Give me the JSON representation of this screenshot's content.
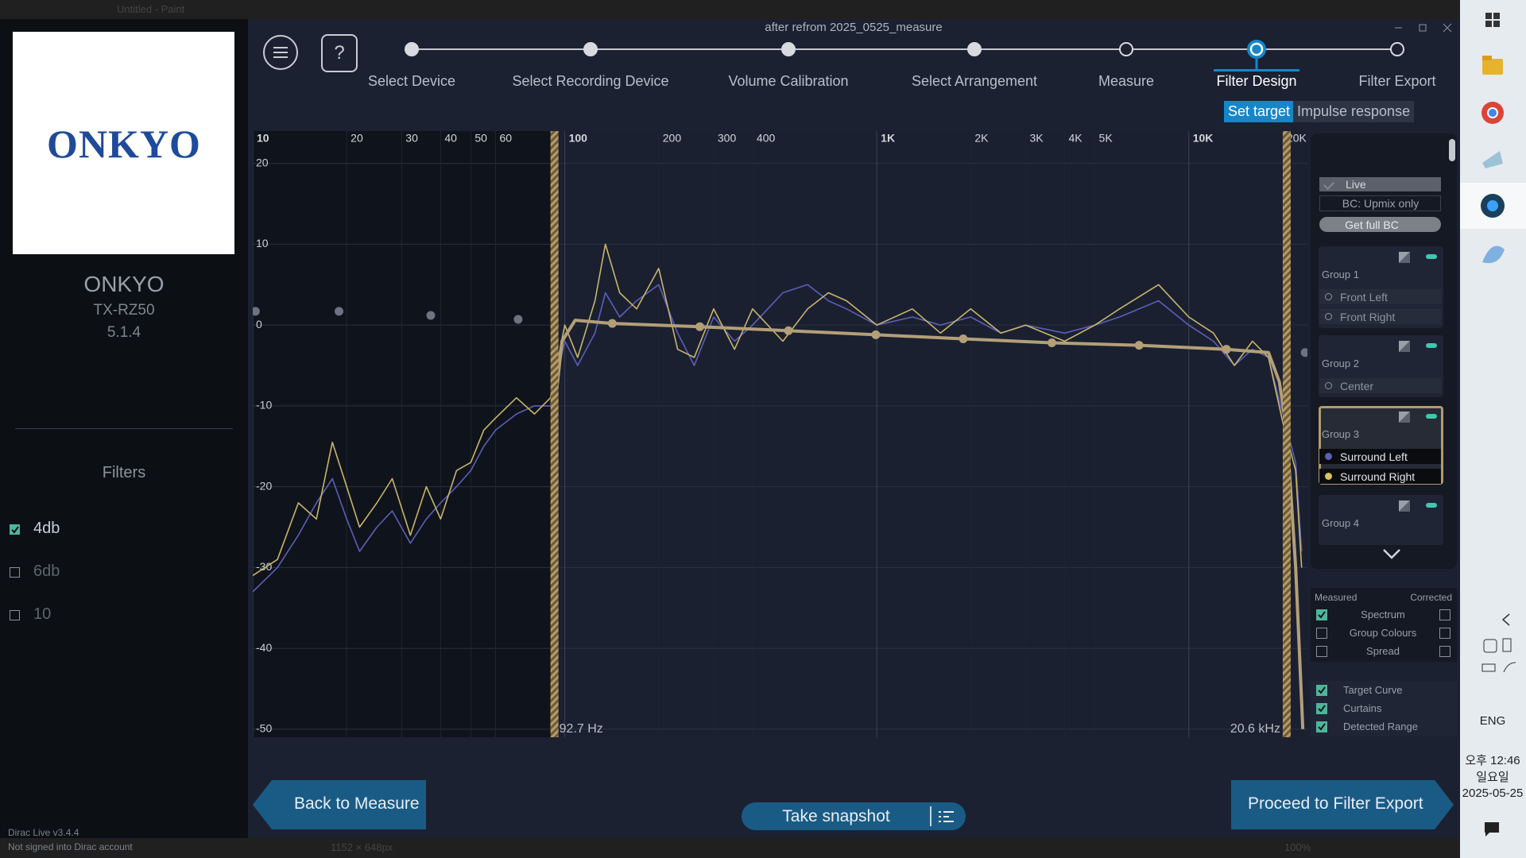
{
  "window": {
    "app_title": "Untitled - Paint",
    "title": "after refrom 2025_0525_measure",
    "status_size": "1152 × 648px",
    "status_zoom": "100%"
  },
  "sidebar": {
    "brand_logo": "ONKYO",
    "device_name": "ONKYO",
    "model": "TX-RZ50",
    "layout": "5.1.4",
    "filters_title": "Filters",
    "filters": [
      {
        "label": "4db",
        "checked": true
      },
      {
        "label": "6db",
        "checked": false
      },
      {
        "label": "10",
        "checked": false
      }
    ],
    "version": "Dirac Live v3.4.4",
    "account": "Not signed into Dirac account"
  },
  "toolbar": {
    "help": "?"
  },
  "steps": [
    {
      "label": "Select Device",
      "state": "done"
    },
    {
      "label": "Select Recording Device",
      "state": "done"
    },
    {
      "label": "Volume Calibration",
      "state": "done"
    },
    {
      "label": "Select Arrangement",
      "state": "done"
    },
    {
      "label": "Measure",
      "state": "todo"
    },
    {
      "label": "Filter Design",
      "state": "current"
    },
    {
      "label": "Filter Export",
      "state": "todo"
    }
  ],
  "tabs": [
    {
      "label": "Set target",
      "active": true
    },
    {
      "label": "Impulse response",
      "active": false
    }
  ],
  "plot": {
    "xlim": [
      10,
      24000
    ],
    "ylim": [
      -51,
      24
    ],
    "log_x": true,
    "xticks": [
      10,
      20,
      30,
      40,
      50,
      60,
      100,
      200,
      300,
      400,
      {
        "value": 1000,
        "label": "1K"
      },
      {
        "value": 2000,
        "label": "2K"
      },
      {
        "value": 3000,
        "label": "3K"
      },
      {
        "value": 4000,
        "label": "4K"
      },
      {
        "value": 5000,
        "label": "5K"
      },
      {
        "value": 10000,
        "label": "10K"
      },
      {
        "value": 20000,
        "label": "20K"
      }
    ],
    "yticks": [
      20,
      10,
      0,
      -10,
      -20,
      -30,
      -40,
      -50
    ],
    "curtains": [
      {
        "value": 92.7,
        "label": "92.7 Hz"
      },
      {
        "value": 20600,
        "label": "20.6 kHz"
      }
    ],
    "series": [
      {
        "name": "Surround Left",
        "color": "#5b5fb8",
        "x": [
          10,
          12,
          14,
          16,
          18,
          20,
          22,
          25,
          28,
          32,
          36,
          40,
          45,
          50,
          55,
          60,
          70,
          80,
          90,
          100,
          110,
          125,
          135,
          150,
          170,
          200,
          230,
          260,
          300,
          350,
          400,
          500,
          600,
          700,
          800,
          1000,
          1300,
          1600,
          2000,
          2500,
          3000,
          4000,
          5000,
          6000,
          8000,
          10000,
          12000,
          14000,
          16000,
          18000,
          20000,
          22000,
          23000
        ],
        "values": [
          -33,
          -30,
          -26,
          -22,
          -19,
          -24,
          -28,
          -25,
          -23,
          -27,
          -24,
          -22,
          -20,
          -18,
          -15,
          -13,
          -11,
          -10,
          -10,
          -2,
          -5,
          -1,
          4,
          1,
          3,
          5,
          -1,
          -5,
          1,
          -2,
          0,
          4,
          5,
          3,
          2,
          0,
          1,
          0,
          1,
          -1,
          0,
          -1,
          0,
          1,
          3,
          0,
          -2,
          -5,
          -3,
          -4,
          -11,
          -17,
          -28
        ]
      },
      {
        "name": "Surround Right",
        "color": "#c9b56a",
        "x": [
          10,
          12,
          14,
          16,
          18,
          20,
          22,
          25,
          28,
          32,
          36,
          40,
          45,
          50,
          55,
          60,
          70,
          80,
          90,
          100,
          110,
          125,
          135,
          150,
          170,
          200,
          230,
          260,
          300,
          350,
          400,
          500,
          600,
          700,
          800,
          1000,
          1300,
          1600,
          2000,
          2500,
          3000,
          4000,
          5000,
          6000,
          8000,
          10000,
          12000,
          14000,
          16000,
          18000,
          20000,
          22000,
          23000
        ],
        "values": [
          -31,
          -29,
          -22,
          -24,
          -14.5,
          -20,
          -25,
          -22,
          -19,
          -26,
          -20,
          -24,
          -18,
          -17,
          -13,
          -11.5,
          -9,
          -11,
          -9,
          0,
          -4,
          3,
          10,
          4,
          2,
          7,
          -3,
          -4,
          2,
          -3,
          2,
          -2,
          2,
          4,
          3,
          0,
          2,
          -1,
          2,
          -1,
          0,
          -2,
          0,
          2,
          5,
          1,
          -1,
          -5,
          -2,
          -4,
          -12,
          -18,
          -30
        ]
      }
    ],
    "target": {
      "color": "#b39f78",
      "x": [
        91,
        93,
        98,
        108,
        142,
        271,
        521,
        993,
        1893,
        3640,
        6930,
        13200,
        18000,
        19500,
        20600,
        22000,
        23200
      ],
      "values": [
        -50,
        -10,
        -2,
        0.6,
        0.2,
        -0.2,
        -0.7,
        -1.2,
        -1.7,
        -2.2,
        -2.5,
        -3,
        -3.4,
        -7,
        -13,
        -30,
        -50
      ]
    },
    "control_points": {
      "x": [
        10.2,
        18.9,
        37.2,
        70.9,
        142,
        271,
        521,
        993,
        1893,
        3640,
        6930,
        13200,
        23600
      ],
      "values": [
        1.7,
        1.7,
        1.2,
        0.7,
        0.2,
        -0.2,
        -0.7,
        -1.2,
        -1.7,
        -2.2,
        -2.5,
        -3,
        -3.4
      ]
    }
  },
  "right_panel": {
    "live": "Live",
    "bc_mode": "BC: Upmix only",
    "get_bc": "Get full BC",
    "groups": [
      {
        "name": "Group 1",
        "selected": false,
        "channels": [
          {
            "name": "Front Left"
          },
          {
            "name": "Front Right"
          }
        ]
      },
      {
        "name": "Group 2",
        "selected": false,
        "channels": [
          {
            "name": "Center"
          }
        ]
      },
      {
        "name": "Group 3",
        "selected": true,
        "channels": [
          {
            "name": "Surround Left",
            "color": "#5b5fb8"
          },
          {
            "name": "Surround Right",
            "color": "#d8c25e"
          }
        ]
      },
      {
        "name": "Group 4",
        "selected": false,
        "channels": []
      }
    ]
  },
  "display": {
    "measured": "Measured",
    "corrected": "Corrected",
    "rows": [
      {
        "label": "Spectrum",
        "measured": true,
        "corrected": false
      },
      {
        "label": "Group Colours",
        "measured": false,
        "corrected": false
      },
      {
        "label": "Spread",
        "measured": false,
        "corrected": false
      }
    ],
    "overlays": [
      {
        "label": "Target Curve",
        "checked": true
      },
      {
        "label": "Curtains",
        "checked": true
      },
      {
        "label": "Detected Range",
        "checked": true
      }
    ]
  },
  "buttons": {
    "back": "Back to Measure",
    "snapshot": "Take snapshot",
    "proceed": "Proceed to Filter Export"
  },
  "taskbar": {
    "language": "ENG",
    "time": "오후 12:46",
    "weekday": "일요일",
    "date": "2025-05-25"
  }
}
